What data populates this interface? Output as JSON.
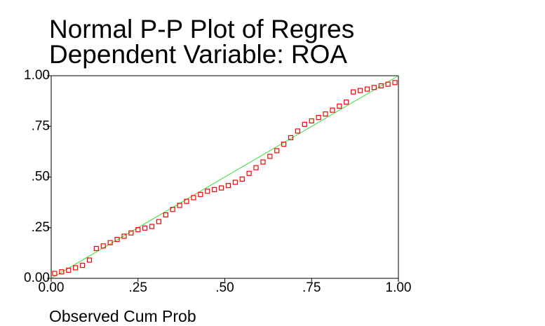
{
  "chart_data": {
    "type": "scatter",
    "title": "Normal P-P Plot of Regres",
    "subtitle": "Dependent Variable: ROA",
    "x_label": "Observed Cum Prob",
    "color": "#ff0000",
    "x": [
      0.01,
      0.03,
      0.05,
      0.07,
      0.09,
      0.11,
      0.13,
      0.15,
      0.17,
      0.19,
      0.21,
      0.23,
      0.25,
      0.27,
      0.29,
      0.31,
      0.33,
      0.35,
      0.37,
      0.39,
      0.41,
      0.43,
      0.45,
      0.47,
      0.49,
      0.51,
      0.53,
      0.55,
      0.57,
      0.59,
      0.61,
      0.63,
      0.65,
      0.67,
      0.69,
      0.71,
      0.73,
      0.75,
      0.77,
      0.79,
      0.81,
      0.83,
      0.85,
      0.87,
      0.89,
      0.91,
      0.93,
      0.95,
      0.97,
      0.99
    ],
    "values": [
      0.024,
      0.032,
      0.04,
      0.052,
      0.064,
      0.09,
      0.147,
      0.16,
      0.176,
      0.192,
      0.208,
      0.224,
      0.24,
      0.248,
      0.256,
      0.28,
      0.313,
      0.34,
      0.36,
      0.38,
      0.398,
      0.414,
      0.43,
      0.438,
      0.446,
      0.458,
      0.474,
      0.49,
      0.518,
      0.546,
      0.574,
      0.602,
      0.63,
      0.662,
      0.694,
      0.727,
      0.76,
      0.777,
      0.794,
      0.811,
      0.83,
      0.85,
      0.87,
      0.92,
      0.927,
      0.934,
      0.942,
      0.95,
      0.958,
      0.966
    ],
    "xlim": [
      0,
      1
    ],
    "ylim": [
      0,
      1
    ],
    "xticks": [
      {
        "value": 0,
        "label": "0.00"
      },
      {
        "value": 0.25,
        "label": ".25"
      },
      {
        "value": 0.5,
        "label": ".50"
      },
      {
        "value": 0.75,
        "label": ".75"
      },
      {
        "value": 1,
        "label": "1.00"
      }
    ],
    "yticks": [
      {
        "value": 0,
        "label": "0.00"
      },
      {
        "value": 0.25,
        "label": ".25"
      },
      {
        "value": 0.5,
        "label": ".50"
      },
      {
        "value": 0.75,
        "label": ".75"
      },
      {
        "value": 1,
        "label": "1.00"
      }
    ]
  }
}
